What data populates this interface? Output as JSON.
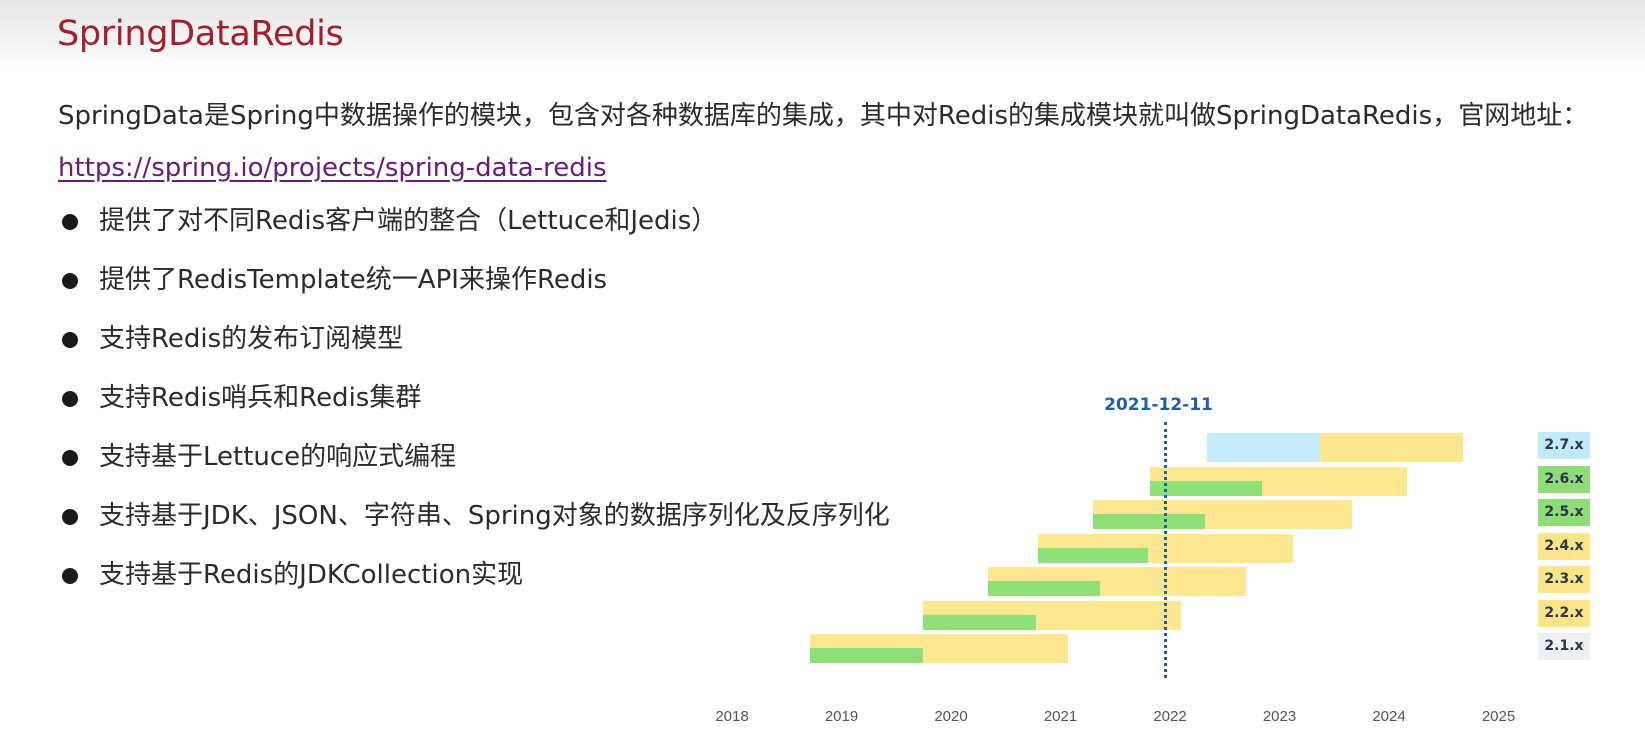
{
  "slide": {
    "title": "SpringDataRedis",
    "intro_text": "SpringData是Spring中数据操作的模块，包含对各种数据库的集成，其中对Redis的集成模块就叫做SpringDataRedis，官网地址：",
    "intro_link": "https://spring.io/projects/spring-data-redis",
    "bullets": [
      "提供了对不同Redis客户端的整合（Lettuce和Jedis）",
      "提供了RedisTemplate统一API来操作Redis",
      "支持Redis的发布订阅模型",
      "支持Redis哨兵和Redis集群",
      "支持基于Lettuce的响应式编程",
      "支持基于JDK、JSON、字符串、Spring对象的数据序列化及反序列化",
      "支持基于Redis的JDKCollection实现"
    ]
  },
  "colors": {
    "title": "#a31f2f",
    "link": "#6a1b7a",
    "oss_support": "#90e07a",
    "commercial_support": "#fde68a",
    "future_release": "#c2eaf8",
    "eol": "#eef0f3",
    "marker": "#1f5fa6"
  },
  "chart_data": {
    "type": "gantt",
    "title": "",
    "xlabel": "",
    "ylabel": "",
    "x_ticks": [
      "2018",
      "2019",
      "2020",
      "2021",
      "2022",
      "2023",
      "2024",
      "2025"
    ],
    "xlim": [
      2018,
      2025
    ],
    "marker": {
      "label": "2021-12-11",
      "x": 2021.95
    },
    "legend_position": "right",
    "series": [
      {
        "name": "2.7.x",
        "label_color": "#c2eaf8",
        "segments": [
          {
            "type": "future_release",
            "start": 2022.34,
            "end": 2023.37
          },
          {
            "type": "commercial_support",
            "start": 2023.37,
            "end": 2024.68
          }
        ]
      },
      {
        "name": "2.6.x",
        "label_color": "#8fdc78",
        "segments": [
          {
            "type": "commercial_support",
            "start": 2021.82,
            "end": 2024.16
          },
          {
            "type": "oss_support",
            "start": 2021.82,
            "end": 2022.84
          }
        ]
      },
      {
        "name": "2.5.x",
        "label_color": "#8fdc78",
        "segments": [
          {
            "type": "commercial_support",
            "start": 2021.3,
            "end": 2023.66
          },
          {
            "type": "oss_support",
            "start": 2021.3,
            "end": 2022.32
          }
        ]
      },
      {
        "name": "2.4.x",
        "label_color": "#fde68a",
        "segments": [
          {
            "type": "commercial_support",
            "start": 2020.79,
            "end": 2023.12
          },
          {
            "type": "oss_support",
            "start": 2020.79,
            "end": 2021.8
          }
        ]
      },
      {
        "name": "2.3.x",
        "label_color": "#fde68a",
        "segments": [
          {
            "type": "commercial_support",
            "start": 2020.34,
            "end": 2022.69
          },
          {
            "type": "oss_support",
            "start": 2020.34,
            "end": 2021.36
          }
        ]
      },
      {
        "name": "2.2.x",
        "label_color": "#fde68a",
        "segments": [
          {
            "type": "commercial_support",
            "start": 2019.74,
            "end": 2022.1
          },
          {
            "type": "oss_support",
            "start": 2019.74,
            "end": 2020.78
          }
        ]
      },
      {
        "name": "2.1.x",
        "label_color": "#eef0f3",
        "segments": [
          {
            "type": "commercial_support",
            "start": 2018.71,
            "end": 2021.07
          },
          {
            "type": "oss_support",
            "start": 2018.71,
            "end": 2019.74
          }
        ]
      }
    ]
  }
}
